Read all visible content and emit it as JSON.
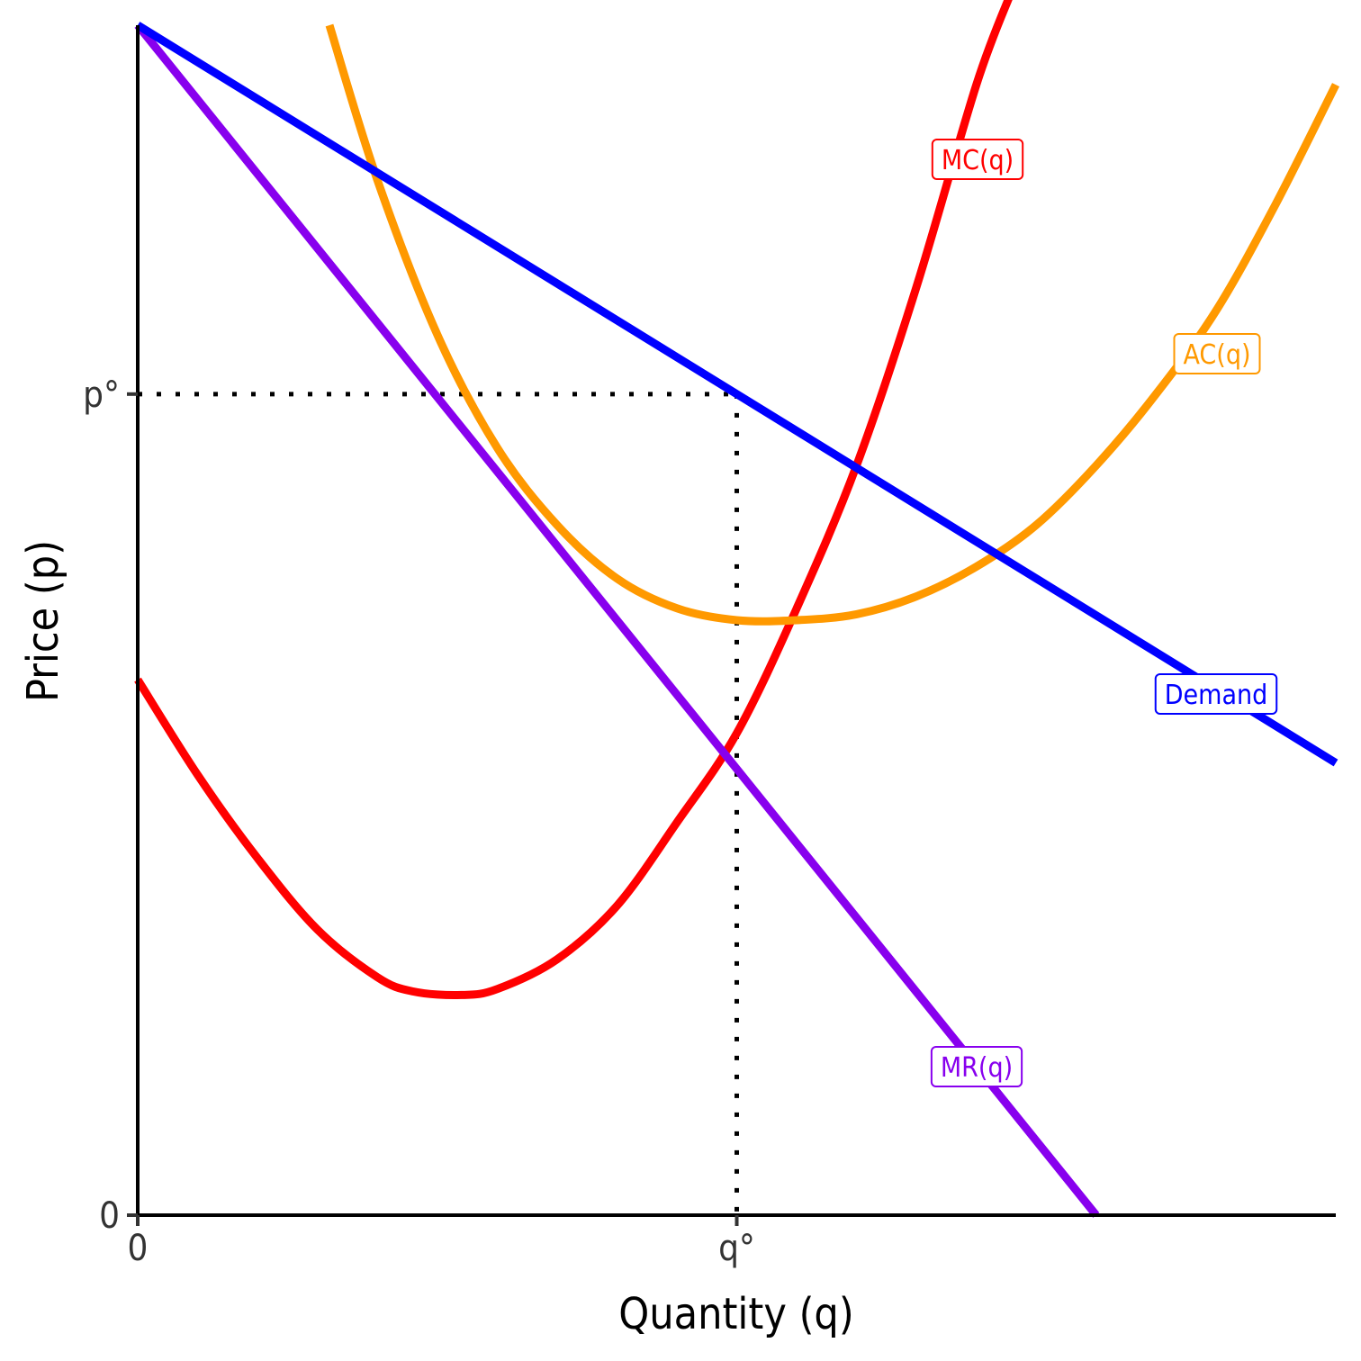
{
  "chart_data": {
    "type": "line",
    "title": "",
    "xlabel": "Quantity (q)",
    "ylabel": "Price (p)",
    "xlim": [
      0,
      10
    ],
    "ylim": [
      0,
      10
    ],
    "x_ticks": [
      {
        "value": 0,
        "label": "0"
      },
      {
        "value": 5,
        "label": "q°"
      }
    ],
    "y_ticks": [
      {
        "value": 0,
        "label": "0"
      },
      {
        "value": 6.9,
        "label": "p°"
      }
    ],
    "reference_lines": {
      "q_star": 5,
      "p_star": 6.9,
      "style": "dotted"
    },
    "grid": false,
    "series": [
      {
        "name": "Demand",
        "label": "Demand",
        "color": "#0000FF",
        "x": [
          0,
          10
        ],
        "y": [
          10,
          3.8
        ]
      },
      {
        "name": "MR",
        "label": "MR(q)",
        "color": "#8800EE",
        "x": [
          0,
          8
        ],
        "y": [
          10,
          0
        ]
      },
      {
        "name": "MC",
        "label": "MC(q)",
        "color": "#FF0000",
        "x": [
          0,
          0.5,
          1,
          1.5,
          2,
          2.3,
          2.7,
          3,
          3.5,
          4,
          4.5,
          5,
          5.5,
          6,
          6.5,
          7,
          7.3
        ],
        "y": [
          4.5,
          3.7,
          3.0,
          2.4,
          2.0,
          1.88,
          1.85,
          1.9,
          2.15,
          2.6,
          3.3,
          4.05,
          5.1,
          6.3,
          7.8,
          9.5,
          10.3
        ]
      },
      {
        "name": "AC",
        "label": "AC(q)",
        "color": "#FF9900",
        "x": [
          1.6,
          2,
          2.5,
          3,
          3.5,
          4,
          4.5,
          5,
          5.5,
          6,
          6.5,
          7,
          7.5,
          8,
          8.5,
          9,
          9.5,
          10
        ],
        "y": [
          10.0,
          8.7,
          7.4,
          6.45,
          5.8,
          5.35,
          5.1,
          5.0,
          5.0,
          5.05,
          5.2,
          5.45,
          5.8,
          6.3,
          6.9,
          7.6,
          8.5,
          9.5
        ]
      }
    ]
  }
}
